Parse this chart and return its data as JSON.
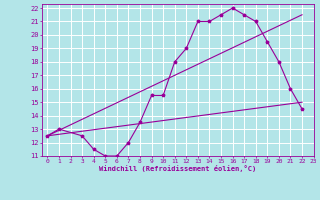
{
  "xlabel": "Windchill (Refroidissement éolien,°C)",
  "xlim": [
    -0.5,
    23
  ],
  "ylim": [
    11,
    22.3
  ],
  "xticks": [
    0,
    1,
    2,
    3,
    4,
    5,
    6,
    7,
    8,
    9,
    10,
    11,
    12,
    13,
    14,
    15,
    16,
    17,
    18,
    19,
    20,
    21,
    22,
    23
  ],
  "yticks": [
    11,
    12,
    13,
    14,
    15,
    16,
    17,
    18,
    19,
    20,
    21,
    22
  ],
  "bg_color": "#b3e5e8",
  "grid_color": "#d0eef0",
  "line_color": "#990099",
  "line1_x": [
    0,
    1,
    3,
    4,
    5,
    6,
    7,
    8,
    9,
    10,
    11,
    12,
    13,
    14,
    15,
    16,
    17,
    18,
    19,
    20,
    21,
    22
  ],
  "line1_y": [
    12.5,
    13.0,
    12.5,
    11.5,
    11.0,
    11.0,
    12.0,
    13.5,
    15.5,
    15.5,
    18.0,
    19.0,
    21.0,
    21.0,
    21.5,
    22.0,
    21.5,
    21.0,
    19.5,
    18.0,
    16.0,
    14.5
  ],
  "line2_x": [
    0,
    22
  ],
  "line2_y": [
    12.5,
    15.0
  ],
  "line3_x": [
    0,
    22
  ],
  "line3_y": [
    12.5,
    21.5
  ]
}
